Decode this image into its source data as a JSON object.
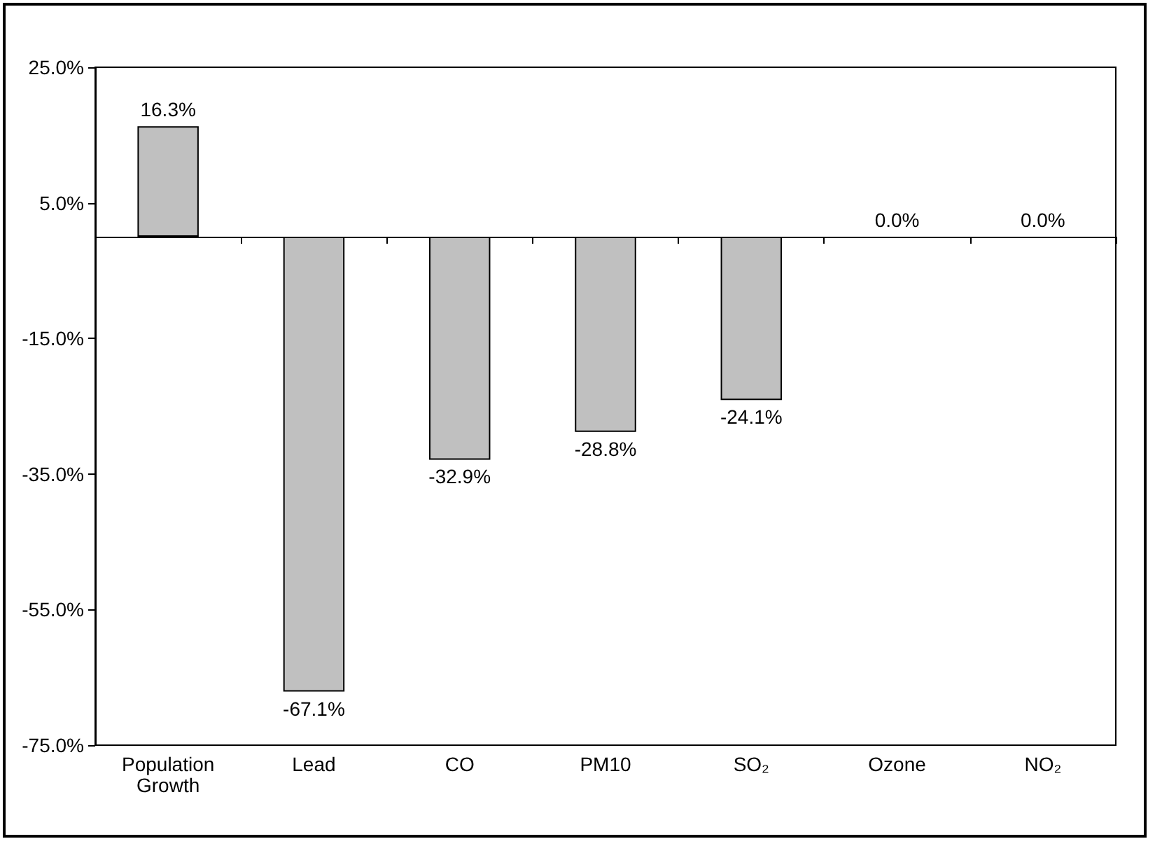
{
  "chart_data": {
    "type": "bar",
    "categories": [
      "Population\nGrowth",
      "Lead",
      "CO",
      "PM10",
      "SO₂",
      "Ozone",
      "NO₂"
    ],
    "values": [
      16.3,
      -67.1,
      -32.9,
      -28.8,
      -24.1,
      0.0,
      0.0
    ],
    "value_labels": [
      "16.3%",
      "-67.1%",
      "-32.9%",
      "-28.8%",
      "-24.1%",
      "0.0%",
      "0.0%"
    ],
    "color": "#c0c0c0",
    "ylim": [
      -75,
      25
    ],
    "yticks": [
      {
        "value": -75,
        "label": "-75.0%"
      },
      {
        "value": -55,
        "label": "-55.0%"
      },
      {
        "value": -35,
        "label": "-35.0%"
      },
      {
        "value": -15,
        "label": "-15.0%"
      },
      {
        "value": 5,
        "label": "5.0%"
      },
      {
        "value": 25,
        "label": "25.0%"
      }
    ]
  }
}
